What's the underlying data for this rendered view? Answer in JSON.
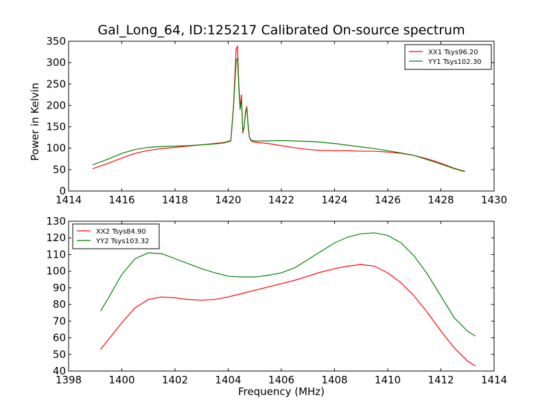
{
  "chart_data": [
    {
      "type": "line",
      "title": "Gal_Long_64, ID:125217 Calibrated On-source spectrum",
      "xlabel": "",
      "ylabel": "Power in Kelvin",
      "xlim": [
        1414,
        1430
      ],
      "ylim": [
        0,
        350
      ],
      "xticks": [
        "1414",
        "1416",
        "1418",
        "1420",
        "1422",
        "1424",
        "1426",
        "1428",
        "1430"
      ],
      "yticks": [
        "0",
        "50",
        "100",
        "150",
        "200",
        "250",
        "300",
        "350"
      ],
      "legend_position": "top-right",
      "series": [
        {
          "name": "XX1 Tsys96.20",
          "color": "#ff0000",
          "x": [
            1414.9,
            1415.5,
            1416.0,
            1416.5,
            1417.0,
            1417.5,
            1418.0,
            1418.5,
            1419.0,
            1419.5,
            1419.9,
            1420.1,
            1420.2,
            1420.3,
            1420.35,
            1420.4,
            1420.45,
            1420.5,
            1420.55,
            1420.6,
            1420.65,
            1420.7,
            1420.75,
            1420.8,
            1420.85,
            1420.9,
            1421.0,
            1421.5,
            1422.0,
            1422.5,
            1423.0,
            1423.5,
            1424.0,
            1424.5,
            1425.0,
            1425.5,
            1426.0,
            1426.5,
            1427.0,
            1427.5,
            1428.0,
            1428.5,
            1428.9
          ],
          "y": [
            52,
            65,
            77,
            88,
            95,
            99,
            102,
            105,
            108,
            111,
            114,
            118,
            200,
            332,
            338,
            250,
            195,
            225,
            135,
            150,
            185,
            198,
            150,
            125,
            118,
            116,
            114,
            111,
            106,
            101,
            97,
            95,
            94,
            94,
            93,
            93,
            91,
            88,
            83,
            75,
            65,
            53,
            46
          ]
        },
        {
          "name": "YY1 Tsys102.30",
          "color": "#008000",
          "x": [
            1414.9,
            1415.5,
            1416.0,
            1416.5,
            1417.0,
            1417.5,
            1418.0,
            1418.5,
            1419.0,
            1419.5,
            1419.9,
            1420.1,
            1420.2,
            1420.3,
            1420.35,
            1420.4,
            1420.45,
            1420.5,
            1420.55,
            1420.6,
            1420.65,
            1420.7,
            1420.75,
            1420.8,
            1420.85,
            1420.9,
            1421.0,
            1421.5,
            1422.0,
            1422.5,
            1423.0,
            1423.5,
            1424.0,
            1424.5,
            1425.0,
            1425.5,
            1426.0,
            1426.5,
            1427.0,
            1427.5,
            1428.0,
            1428.5,
            1428.9
          ],
          "y": [
            61,
            75,
            88,
            97,
            102,
            104,
            105,
            106,
            108,
            110,
            113,
            117,
            195,
            305,
            310,
            240,
            190,
            215,
            140,
            150,
            180,
            195,
            155,
            125,
            120,
            118,
            117,
            117,
            118,
            117,
            116,
            114,
            111,
            107,
            103,
            99,
            94,
            89,
            83,
            73,
            63,
            52,
            45
          ]
        }
      ]
    },
    {
      "type": "line",
      "title": "",
      "xlabel": "Frequency (MHz)",
      "ylabel": "",
      "xlim": [
        1398,
        1414
      ],
      "ylim": [
        40,
        130
      ],
      "xticks": [
        "1398",
        "1400",
        "1402",
        "1404",
        "1406",
        "1408",
        "1410",
        "1412",
        "1414"
      ],
      "yticks": [
        "40",
        "50",
        "60",
        "70",
        "80",
        "90",
        "100",
        "110",
        "120",
        "130"
      ],
      "legend_position": "top-left",
      "series": [
        {
          "name": "XX2 Tsys84.90",
          "color": "#ff0000",
          "x": [
            1399.2,
            1399.5,
            1400.0,
            1400.5,
            1401.0,
            1401.5,
            1402.0,
            1402.5,
            1403.0,
            1403.5,
            1404.0,
            1404.5,
            1405.0,
            1405.5,
            1406.0,
            1406.5,
            1407.0,
            1407.5,
            1408.0,
            1408.5,
            1409.0,
            1409.5,
            1410.0,
            1410.5,
            1411.0,
            1411.5,
            1412.0,
            1412.5,
            1413.0,
            1413.3
          ],
          "y": [
            53,
            59,
            69,
            78,
            83,
            84.5,
            84,
            83,
            82.5,
            83,
            84.5,
            86.5,
            88.5,
            90.5,
            92.5,
            94.5,
            97,
            99.5,
            101.5,
            103,
            104,
            103,
            99,
            93,
            85,
            75,
            64,
            54,
            46,
            43
          ]
        },
        {
          "name": "YY2 Tsys103.32",
          "color": "#008000",
          "x": [
            1399.2,
            1399.5,
            1400.0,
            1400.5,
            1401.0,
            1401.5,
            1402.0,
            1402.5,
            1403.0,
            1403.5,
            1404.0,
            1404.5,
            1405.0,
            1405.5,
            1406.0,
            1406.5,
            1407.0,
            1407.5,
            1408.0,
            1408.5,
            1409.0,
            1409.5,
            1410.0,
            1410.5,
            1411.0,
            1411.5,
            1412.0,
            1412.5,
            1413.0,
            1413.3
          ],
          "y": [
            76,
            84,
            98,
            107.5,
            111,
            110.5,
            107.5,
            104.5,
            101.5,
            99,
            97,
            96.5,
            96.5,
            97.5,
            99,
            102,
            107,
            112,
            117,
            120.5,
            122.5,
            123,
            121.5,
            117,
            109,
            98,
            85,
            72,
            64,
            61
          ]
        }
      ]
    }
  ]
}
